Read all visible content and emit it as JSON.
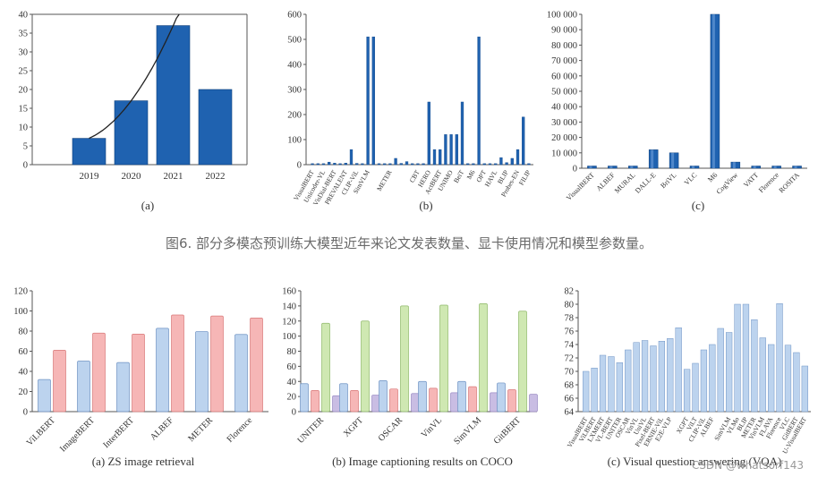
{
  "figure_caption": "图6. 部分多模态预训练大模型近年来论文发表数量、显卡使用情况和模型参数量。",
  "watermark": "CSDN @whatsorf143",
  "colors": {
    "bar_blue": "#1f62b0",
    "bar_blue_light": "#bcd3ee",
    "bar_red_light": "#f6b6b6",
    "bar_green_light": "#cfe8b2",
    "bar_purple_light": "#c9bde3",
    "axis": "#555555",
    "grid": "#cccccc"
  },
  "chart_data": [
    {
      "id": "a",
      "type": "bar",
      "label": "(a)",
      "categories": [
        "2019",
        "2020",
        "2021",
        "2022"
      ],
      "values": [
        7,
        17,
        37,
        20
      ],
      "ylim": [
        0,
        40
      ],
      "yticks": [
        0,
        5,
        10,
        15,
        20,
        25,
        30,
        35,
        40
      ],
      "trendline": true
    },
    {
      "id": "b",
      "type": "bar",
      "label": "(b)",
      "categories": [
        "VisualBERT",
        "Unicoder-VL",
        "VisDial-BERT",
        "PREVALENT",
        "CLIP-ViL",
        "SimVLM",
        "METER",
        "CBT",
        "HERO",
        "ActBERT",
        "UNIMO",
        "BeiT",
        "M6",
        "OPT",
        "HAVL",
        "BLIP",
        "Probes-EN",
        "FILIP"
      ],
      "all_values": [
        4,
        4,
        4,
        10,
        6,
        4,
        6,
        60,
        5,
        4,
        510,
        510,
        4,
        4,
        4,
        25,
        5,
        12,
        4,
        4,
        4,
        250,
        60,
        60,
        120,
        120,
        120,
        250,
        4,
        4,
        510,
        4,
        4,
        4,
        28,
        8,
        25,
        60,
        190,
        4
      ],
      "label_slot": [
        0,
        2,
        4,
        6,
        8,
        10,
        14,
        19,
        21,
        23,
        25,
        27,
        29,
        31,
        33,
        35,
        37,
        39
      ],
      "ylim": [
        0,
        600
      ],
      "yticks": [
        0,
        100,
        200,
        300,
        400,
        500,
        600
      ]
    },
    {
      "id": "c",
      "type": "bar",
      "label": "(c)",
      "categories": [
        "VisualBERT",
        "ALBEF",
        "MURAL",
        "DALL-E",
        "BriVL",
        "VLC",
        "M6",
        "CogView",
        "VATT",
        "Florence",
        "ROSITA"
      ],
      "values": [
        110,
        150,
        430,
        12000,
        10000,
        100,
        100000,
        4000,
        150,
        893,
        200
      ],
      "ylim": [
        0,
        100000
      ],
      "yticks": [
        0,
        10000,
        20000,
        30000,
        40000,
        50000,
        60000,
        70000,
        80000,
        90000,
        100000
      ],
      "ytick_labels": [
        "0",
        "10 000",
        "20 000",
        "30 000",
        "40 000",
        "50 000",
        "60 000",
        "70 000",
        "80 000",
        "90 000",
        "100 000"
      ]
    },
    {
      "id": "d",
      "type": "bar",
      "label": "(a) ZS image retrieval",
      "categories": [
        "ViLBERT",
        "ImageBERT",
        "InterBERT",
        "ALBEF",
        "METER",
        "Florence"
      ],
      "series": [
        {
          "values": [
            31.9,
            50.2,
            48.8,
            82.8,
            79.6,
            76.7
          ]
        },
        {
          "values": [
            61.0,
            78.0,
            77.0,
            96.0,
            95.0,
            93.0
          ]
        }
      ],
      "ylim": [
        0,
        120
      ],
      "yticks": [
        0,
        20,
        40,
        60,
        80,
        100,
        120
      ]
    },
    {
      "id": "e",
      "type": "bar",
      "label": "(b) Image captioning results on COCO",
      "categories": [
        "UNITER",
        "XGPT",
        "OSCAR",
        "VinVL",
        "SimVLM",
        "GitBERT"
      ],
      "series": [
        {
          "values": [
            37,
            37,
            41,
            40,
            40,
            38
          ]
        },
        {
          "values": [
            28,
            28,
            30,
            31,
            33,
            29
          ]
        },
        {
          "values": [
            117,
            120,
            140,
            141,
            143,
            133
          ]
        },
        {
          "values": [
            21,
            22,
            24,
            25,
            25,
            23
          ]
        }
      ],
      "ylim": [
        0,
        160
      ],
      "yticks": [
        0,
        20,
        40,
        60,
        80,
        100,
        120,
        140,
        160
      ]
    },
    {
      "id": "f",
      "type": "bar",
      "label": "(c) Visual question answering (VQA)",
      "categories": [
        "VisualBERT",
        "ViLBERT",
        "LXMERT",
        "VL-BERT",
        "UNITER",
        "OSCAR",
        "VinVL",
        "UniVL",
        "Pixel-BERT",
        "ERNIE-ViL",
        "E2E-VLP",
        "XGPT",
        "ViLT",
        "CLIP-ViL",
        "ALBEF",
        "SimVLM",
        "VLMo",
        "BLIP",
        "METER",
        "VinVLM",
        "FLAVA",
        "Florence",
        "VLC",
        "GitBERT",
        "U-VisualBERT"
      ],
      "all_values": [
        70.0,
        70.5,
        72.4,
        72.2,
        71.3,
        73.2,
        74.3,
        74.6,
        73.8,
        74.5,
        74.9,
        76.5,
        70.3,
        71.2,
        73.2,
        74.0,
        76.4,
        75.8,
        80.0,
        80.0,
        77.7,
        75.0,
        74.0,
        80.1,
        73.9,
        72.8,
        70.8
      ],
      "label_slot": [
        0,
        1,
        2,
        3,
        4,
        5,
        6,
        7,
        8,
        9,
        10,
        12,
        13,
        14,
        15,
        17,
        18,
        19,
        20,
        21,
        22,
        23,
        24,
        25,
        26
      ],
      "ylim": [
        64,
        82
      ],
      "yticks": [
        64,
        66,
        68,
        70,
        72,
        74,
        76,
        78,
        80,
        82
      ]
    }
  ]
}
